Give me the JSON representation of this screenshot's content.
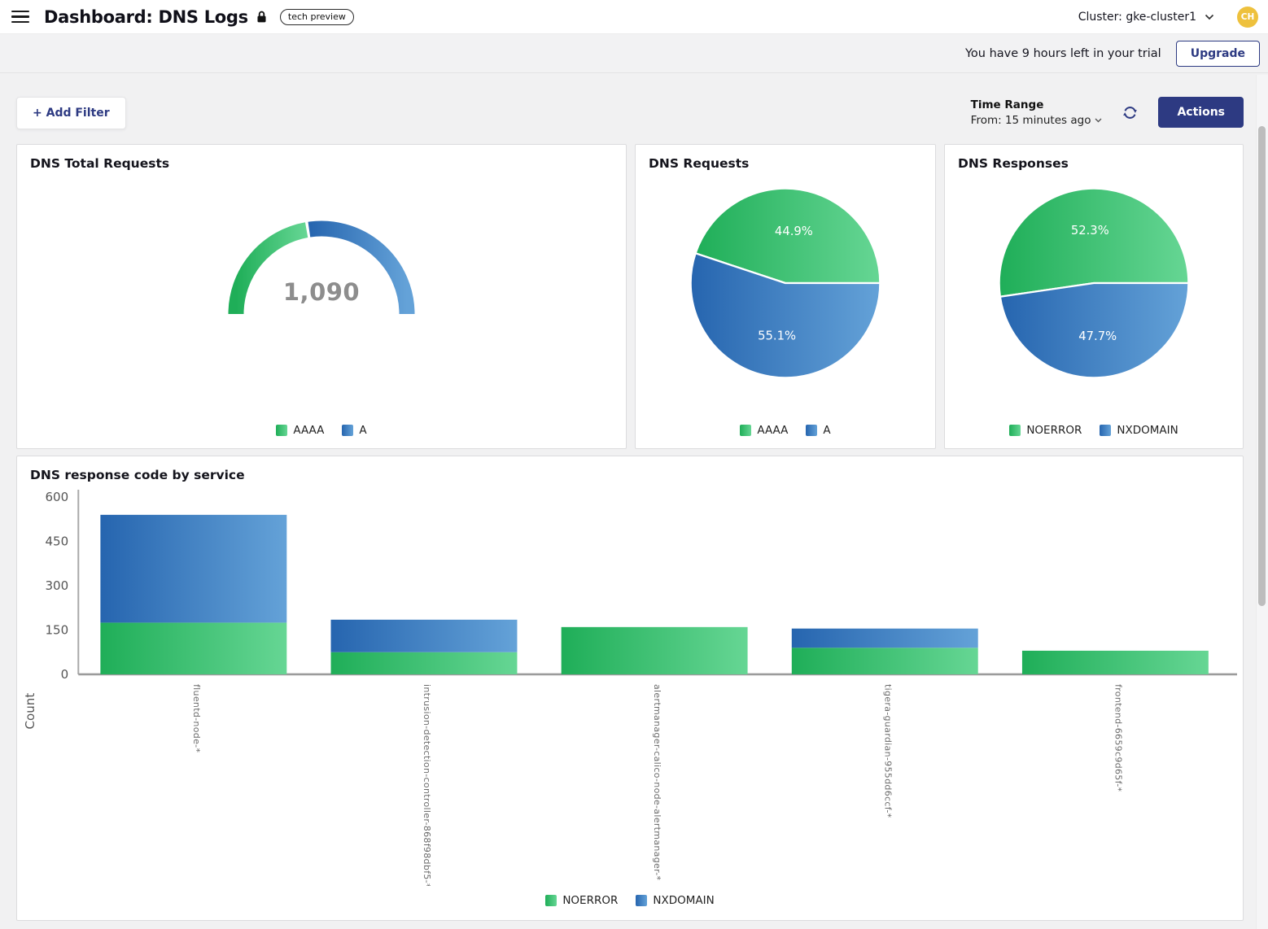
{
  "header": {
    "title": "Dashboard: DNS Logs",
    "badge": "tech preview",
    "cluster_label": "Cluster: gke-cluster1",
    "avatar_initials": "CH"
  },
  "trial": {
    "message": "You have 9 hours left in your trial",
    "upgrade_label": "Upgrade"
  },
  "toolbar": {
    "add_filter_label": "+ Add Filter",
    "time_range_title": "Time Range",
    "time_range_value": "From: 15 minutes ago",
    "actions_label": "Actions"
  },
  "colors": {
    "navy": "#2d3a82",
    "green_dark": "#1fae58",
    "green_light": "#66d694",
    "blue_dark": "#2665af",
    "blue_light": "#64a2d8",
    "avatar_gold": "#eec13d",
    "value_gray": "#8d8d8d"
  },
  "chart_data": [
    {
      "id": "dns-total-requests",
      "type": "gauge",
      "title": "DNS Total Requests",
      "value": 1090,
      "display_value": "1,090",
      "series": [
        {
          "name": "AAAA",
          "percent": 44.9,
          "color": "green"
        },
        {
          "name": "A",
          "percent": 55.1,
          "color": "blue"
        }
      ]
    },
    {
      "id": "dns-requests",
      "type": "pie",
      "title": "DNS Requests",
      "slices": [
        {
          "label": "AAAA",
          "percent": 44.9,
          "display": "44.9%",
          "color": "green"
        },
        {
          "label": "A",
          "percent": 55.1,
          "display": "55.1%",
          "color": "blue"
        }
      ]
    },
    {
      "id": "dns-responses",
      "type": "pie",
      "title": "DNS Responses",
      "slices": [
        {
          "label": "NOERROR",
          "percent": 52.3,
          "display": "52.3%",
          "color": "green"
        },
        {
          "label": "NXDOMAIN",
          "percent": 47.7,
          "display": "47.7%",
          "color": "blue"
        }
      ]
    },
    {
      "id": "dns-response-code-by-service",
      "type": "bar",
      "stacked": true,
      "title": "DNS response code by service",
      "ylabel": "Count",
      "ylim": [
        0,
        600
      ],
      "yticks": [
        0,
        150,
        300,
        450,
        600
      ],
      "categories": [
        "fluentd-node-*",
        "intrusion-detection-controller-868f98dbf5-*",
        "alertmanager-calico-node-alertmanager-*",
        "tigera-guardian-955dd6ccf-*",
        "frontend-6659c9d65f-*"
      ],
      "series": [
        {
          "name": "NOERROR",
          "color": "green",
          "values": [
            175,
            75,
            160,
            90,
            80
          ]
        },
        {
          "name": "NXDOMAIN",
          "color": "blue",
          "values": [
            365,
            110,
            0,
            65,
            0
          ]
        }
      ],
      "legend_position": "bottom"
    }
  ]
}
